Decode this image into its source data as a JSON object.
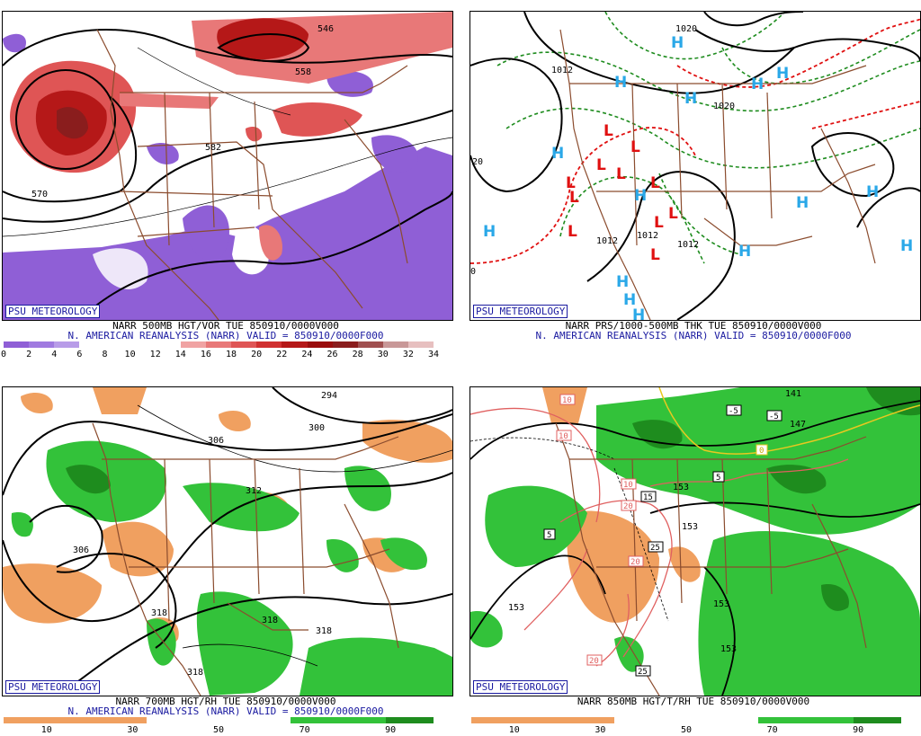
{
  "brand": "PSU METEOROLOGY",
  "panels": [
    {
      "caption1": "NARR 500MB HGT/VOR TUE 850910/0000V000",
      "caption2": "N. AMERICAN REANALYSIS (NARR) VALID = 850910/0000F000",
      "colorbar_labels": [
        "0",
        "2",
        "4",
        "6",
        "8",
        "10",
        "12",
        "14",
        "16",
        "18",
        "20",
        "22",
        "24",
        "26",
        "28",
        "30",
        "32",
        "34"
      ],
      "colorbar_colors": [
        "#8f5fd6",
        "#a07ae0",
        "#b89ce8",
        "#ffffff",
        "#ffffff",
        "#ffffff",
        "#ffffff",
        "#f0a3a3",
        "#e87878",
        "#df5555",
        "#d03030",
        "#b51818",
        "#9a0d0d",
        "#8a1d1d",
        "#a05050",
        "#c89898",
        "#e7c0c0"
      ],
      "contour_labels": [
        "546",
        "558",
        "570",
        "582"
      ]
    },
    {
      "caption1": "NARR PRS/1000-500MB THK TUE 850910/0000V000",
      "caption2": "N. AMERICAN REANALYSIS (NARR) VALID = 850910/0000F000",
      "contour_labels": [
        "1020",
        "1012",
        "1020",
        "1012",
        "1012",
        "1012",
        "20",
        "0"
      ],
      "high_marker": "H",
      "low_marker": "L"
    },
    {
      "caption1": "NARR 700MB HGT/RH TUE 850910/0000V000",
      "caption2": "N. AMERICAN REANALYSIS (NARR) VALID = 850910/0000F000",
      "colorbar_labels": [
        "10",
        "30",
        "50",
        "70",
        "90"
      ],
      "contour_labels": [
        "294",
        "300",
        "306",
        "312",
        "306",
        "318",
        "318",
        "318",
        "318"
      ]
    },
    {
      "caption1": "NARR 850MB HGT/T/RH TUE 850910/0000V000",
      "caption2": "",
      "colorbar_labels": [
        "10",
        "30",
        "50",
        "70",
        "90"
      ],
      "contour_labels": [
        "141",
        "147",
        "153",
        "153",
        "153",
        "153",
        "153"
      ],
      "temp_labels": [
        "10",
        "10",
        "-5",
        "-5",
        "0",
        "5",
        "10",
        "15",
        "20",
        "25",
        "20",
        "20",
        "25",
        "5"
      ]
    }
  ]
}
